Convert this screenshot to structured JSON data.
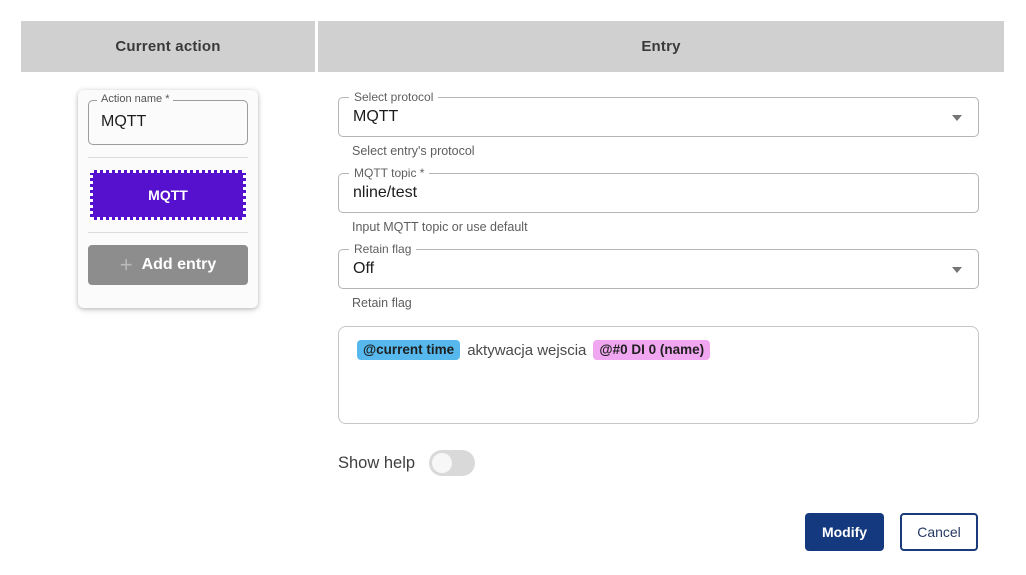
{
  "headers": {
    "left": "Current action",
    "right": "Entry"
  },
  "current_action": {
    "action_name": {
      "label": "Action name *",
      "value": "MQTT"
    },
    "entry_button_label": "MQTT",
    "add_entry": {
      "plus_icon": "+",
      "label": "Add entry"
    }
  },
  "entry_form": {
    "protocol": {
      "label": "Select protocol",
      "value": "MQTT",
      "helper": "Select entry's protocol"
    },
    "topic": {
      "label": "MQTT topic *",
      "value": "nline/test",
      "helper": "Input MQTT topic or use default"
    },
    "retain": {
      "label": "Retain flag",
      "value": "Off",
      "helper": "Retain flag"
    },
    "message": {
      "segments": [
        {
          "kind": "chip",
          "text": "@current time",
          "color": "#56b8ec"
        },
        {
          "kind": "text",
          "text": "aktywacja wejscia"
        },
        {
          "kind": "chip",
          "text": "@#0 DI 0 (name)",
          "color": "#f0a6f0"
        }
      ]
    },
    "show_help": {
      "label": "Show help",
      "enabled": false
    }
  },
  "actions": {
    "modify_label": "Modify",
    "cancel_label": "Cancel"
  },
  "colors": {
    "header_bg": "#d0d0d0",
    "entry_button_bg": "#5511cd",
    "add_entry_bg": "#8d8d8d",
    "primary_button_bg": "#15397f",
    "chip_blue": "#56b8ec",
    "chip_pink": "#f0a6f0"
  }
}
